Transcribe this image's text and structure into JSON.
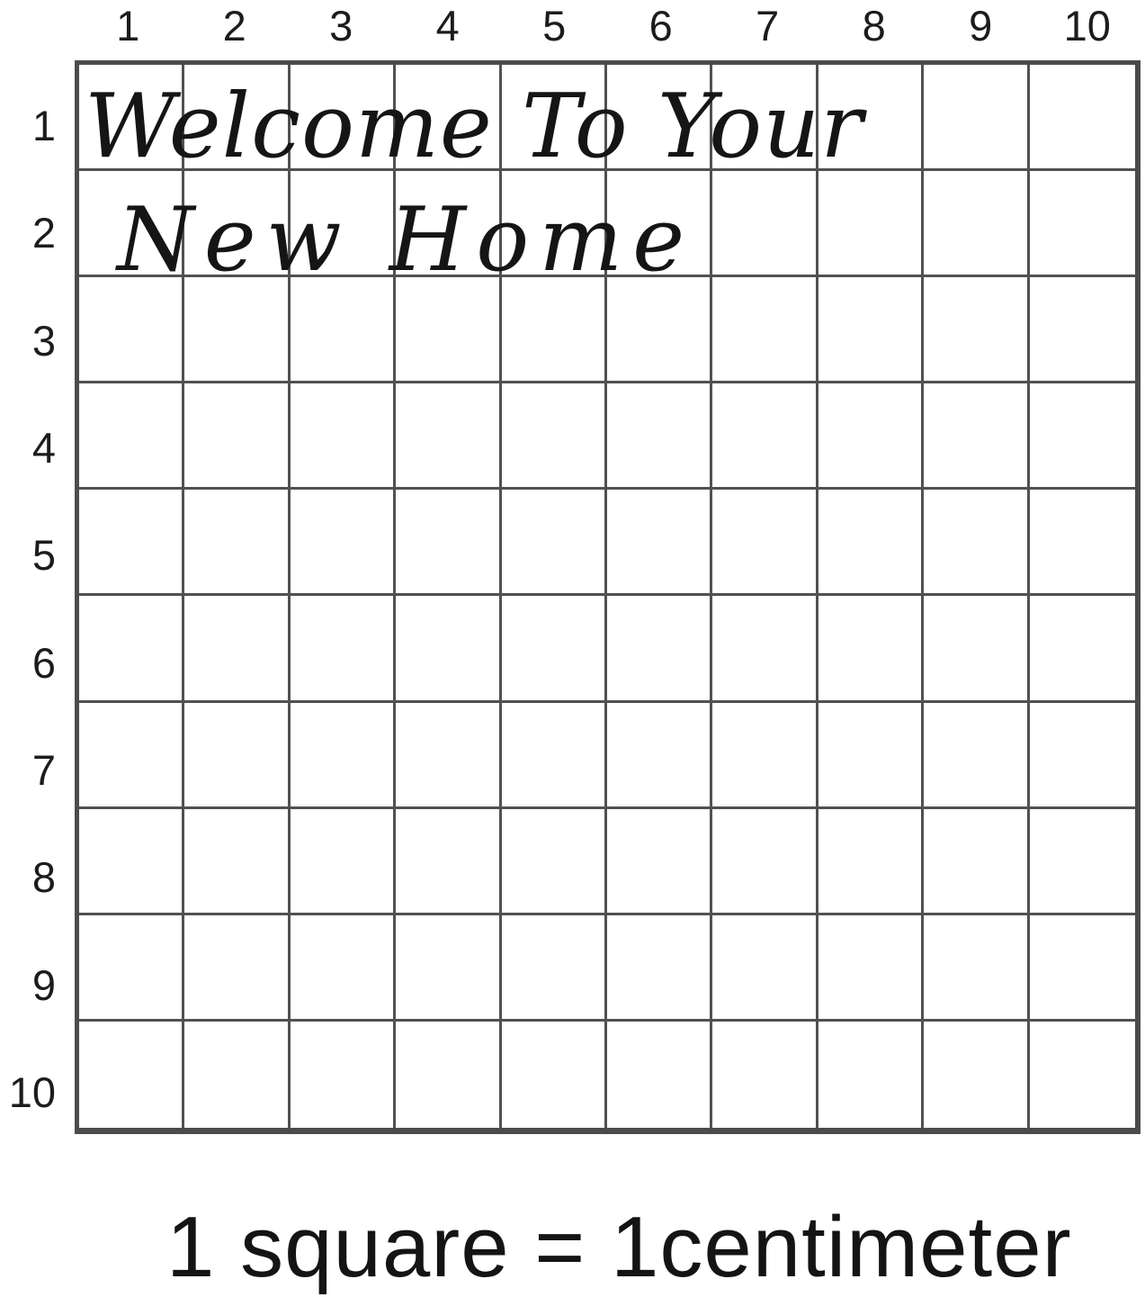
{
  "grid": {
    "rows": 10,
    "cols": 10,
    "column_labels": [
      "1",
      "2",
      "3",
      "4",
      "5",
      "6",
      "7",
      "8",
      "9",
      "10"
    ],
    "row_labels": [
      "1",
      "2",
      "3",
      "4",
      "5",
      "6",
      "7",
      "8",
      "9",
      "10"
    ],
    "line_color": "#515151",
    "border_color": "#4c4c4c"
  },
  "overlay_text": {
    "line1": "Welcome To Your",
    "line2": "New Home"
  },
  "caption": "1 square = 1centimeter"
}
